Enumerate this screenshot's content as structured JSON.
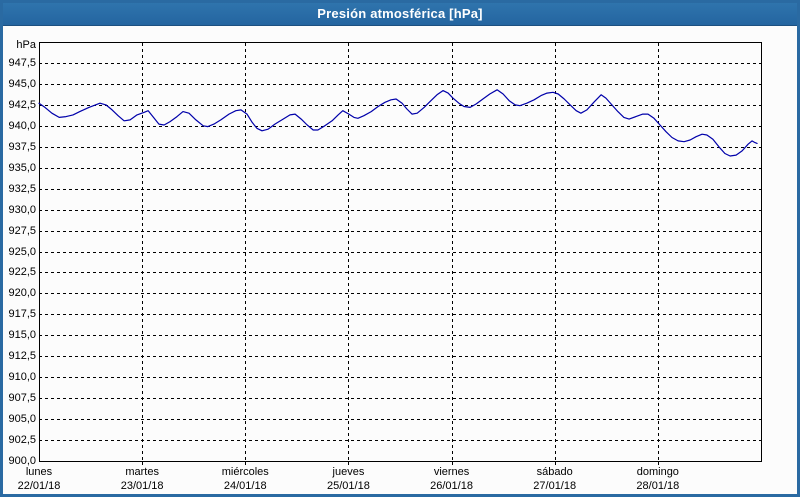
{
  "window": {
    "title": "Presión atmosférica [hPa]"
  },
  "colors": {
    "titlebar_top": "#2f74ad",
    "titlebar_bottom": "#2465a0",
    "title_text": "#ffffff",
    "window_border": "#2a6aa2",
    "content_bg": "#fcfcfc",
    "plot_frame": "#000000",
    "gridline": "#000000",
    "line": "#0000aa",
    "label_text": "#000000"
  },
  "chart_data": {
    "type": "line",
    "title": "Presión atmosférica [hPa]",
    "unit_label": "hPa",
    "ylabel": "hPa",
    "ylim": [
      900,
      950
    ],
    "y_tick_interval": 2.5,
    "grid": true,
    "legend": false,
    "x_range_hours": [
      0,
      168
    ],
    "y_ticks": [
      {
        "label": "947,5",
        "value": 947.5
      },
      {
        "label": "945,0",
        "value": 945.0
      },
      {
        "label": "942,5",
        "value": 942.5
      },
      {
        "label": "940,0",
        "value": 940.0
      },
      {
        "label": "937,5",
        "value": 937.5
      },
      {
        "label": "935,0",
        "value": 935.0
      },
      {
        "label": "932,5",
        "value": 932.5
      },
      {
        "label": "930,0",
        "value": 930.0
      },
      {
        "label": "927,5",
        "value": 927.5
      },
      {
        "label": "925,0",
        "value": 925.0
      },
      {
        "label": "922,5",
        "value": 922.5
      },
      {
        "label": "920,0",
        "value": 920.0
      },
      {
        "label": "917,5",
        "value": 917.5
      },
      {
        "label": "915,0",
        "value": 915.0
      },
      {
        "label": "912,5",
        "value": 912.5
      },
      {
        "label": "910,0",
        "value": 910.0
      },
      {
        "label": "907,5",
        "value": 907.5
      },
      {
        "label": "905,0",
        "value": 905.0
      },
      {
        "label": "902,5",
        "value": 902.5
      },
      {
        "label": "900,0",
        "value": 900.0
      }
    ],
    "x_ticks": [
      {
        "day": "lunes",
        "date": "22/01/18",
        "hour": 0
      },
      {
        "day": "martes",
        "date": "23/01/18",
        "hour": 24
      },
      {
        "day": "miércoles",
        "date": "24/01/18",
        "hour": 48
      },
      {
        "day": "jueves",
        "date": "25/01/18",
        "hour": 72
      },
      {
        "day": "viernes",
        "date": "26/01/18",
        "hour": 96
      },
      {
        "day": "sábado",
        "date": "27/01/18",
        "hour": 120
      },
      {
        "day": "domingo",
        "date": "28/01/18",
        "hour": 144
      }
    ],
    "series": [
      {
        "name": "Presión atmosférica",
        "color": "#0000aa",
        "points_hours_hpa": [
          [
            0,
            942.7
          ],
          [
            1.4,
            942.2
          ],
          [
            3,
            941.5
          ],
          [
            4.7,
            941
          ],
          [
            6.3,
            941.1
          ],
          [
            7.9,
            941.3
          ],
          [
            9.5,
            941.7
          ],
          [
            11.6,
            942.2
          ],
          [
            14.2,
            942.7
          ],
          [
            15.6,
            942.5
          ],
          [
            17,
            941.9
          ],
          [
            18.4,
            941.2
          ],
          [
            19.8,
            940.6
          ],
          [
            21.2,
            940.7
          ],
          [
            22.8,
            941.3
          ],
          [
            24.4,
            941.6
          ],
          [
            25.4,
            941.8
          ],
          [
            26.5,
            941.1
          ],
          [
            27.9,
            940.2
          ],
          [
            29.1,
            940.1
          ],
          [
            30.5,
            940.5
          ],
          [
            32.1,
            941.1
          ],
          [
            33.5,
            941.7
          ],
          [
            34.9,
            941.5
          ],
          [
            36.5,
            940.7
          ],
          [
            38.2,
            940
          ],
          [
            39.3,
            939.9
          ],
          [
            40.7,
            940.2
          ],
          [
            42.3,
            940.7
          ],
          [
            44.2,
            941.4
          ],
          [
            45.8,
            941.8
          ],
          [
            47,
            941.9
          ],
          [
            48.4,
            941.4
          ],
          [
            49.6,
            940.4
          ],
          [
            50.7,
            939.7
          ],
          [
            51.9,
            939.4
          ],
          [
            53.3,
            939.6
          ],
          [
            54.9,
            940.2
          ],
          [
            56.8,
            940.8
          ],
          [
            58.4,
            941.3
          ],
          [
            59.6,
            941.4
          ],
          [
            61,
            940.8
          ],
          [
            62.4,
            940.1
          ],
          [
            63.8,
            939.5
          ],
          [
            64.9,
            939.5
          ],
          [
            66.5,
            940
          ],
          [
            68.2,
            940.6
          ],
          [
            69.6,
            941.3
          ],
          [
            70.7,
            941.8
          ],
          [
            72.1,
            941.4
          ],
          [
            73.3,
            941
          ],
          [
            74.2,
            940.9
          ],
          [
            75.6,
            941.2
          ],
          [
            77.3,
            941.7
          ],
          [
            78.9,
            942.3
          ],
          [
            80.5,
            942.8
          ],
          [
            81.9,
            943.1
          ],
          [
            83.1,
            943.2
          ],
          [
            84.5,
            942.7
          ],
          [
            85.6,
            942
          ],
          [
            86.8,
            941.4
          ],
          [
            88,
            941.5
          ],
          [
            89.6,
            942.2
          ],
          [
            91.2,
            943
          ],
          [
            92.6,
            943.7
          ],
          [
            94,
            944.2
          ],
          [
            95.2,
            943.9
          ],
          [
            96.3,
            943.3
          ],
          [
            97.7,
            942.7
          ],
          [
            98.9,
            942.3
          ],
          [
            100.3,
            942.2
          ],
          [
            101.7,
            942.6
          ],
          [
            103.3,
            943.2
          ],
          [
            104.9,
            943.8
          ],
          [
            106.6,
            944.3
          ],
          [
            108,
            943.8
          ],
          [
            109.4,
            943
          ],
          [
            110.8,
            942.5
          ],
          [
            111.9,
            942.4
          ],
          [
            113.5,
            942.7
          ],
          [
            115.2,
            943.1
          ],
          [
            116.8,
            943.6
          ],
          [
            118.2,
            943.9
          ],
          [
            119.6,
            944
          ],
          [
            120.8,
            943.8
          ],
          [
            122.2,
            943.2
          ],
          [
            123.6,
            942.5
          ],
          [
            125,
            941.8
          ],
          [
            126.1,
            941.5
          ],
          [
            127.5,
            941.9
          ],
          [
            129.1,
            942.8
          ],
          [
            130.8,
            943.7
          ],
          [
            131.9,
            943.3
          ],
          [
            133.3,
            942.5
          ],
          [
            134.7,
            941.7
          ],
          [
            136.1,
            941
          ],
          [
            137.3,
            940.8
          ],
          [
            138.9,
            941.1
          ],
          [
            140.5,
            941.4
          ],
          [
            141.7,
            941.4
          ],
          [
            143.1,
            940.9
          ],
          [
            144.5,
            940.1
          ],
          [
            145.9,
            939.3
          ],
          [
            147.3,
            938.6
          ],
          [
            148.7,
            938.2
          ],
          [
            150.1,
            938.1
          ],
          [
            151.5,
            938.3
          ],
          [
            152.9,
            938.7
          ],
          [
            154.3,
            939
          ],
          [
            155.4,
            938.9
          ],
          [
            156.8,
            938.4
          ],
          [
            158.2,
            937.5
          ],
          [
            159.6,
            936.7
          ],
          [
            160.8,
            936.4
          ],
          [
            162.2,
            936.5
          ],
          [
            163.6,
            937
          ],
          [
            165,
            937.8
          ],
          [
            165.9,
            938.2
          ],
          [
            166.6,
            938
          ],
          [
            167.1,
            937.9
          ]
        ]
      }
    ]
  }
}
